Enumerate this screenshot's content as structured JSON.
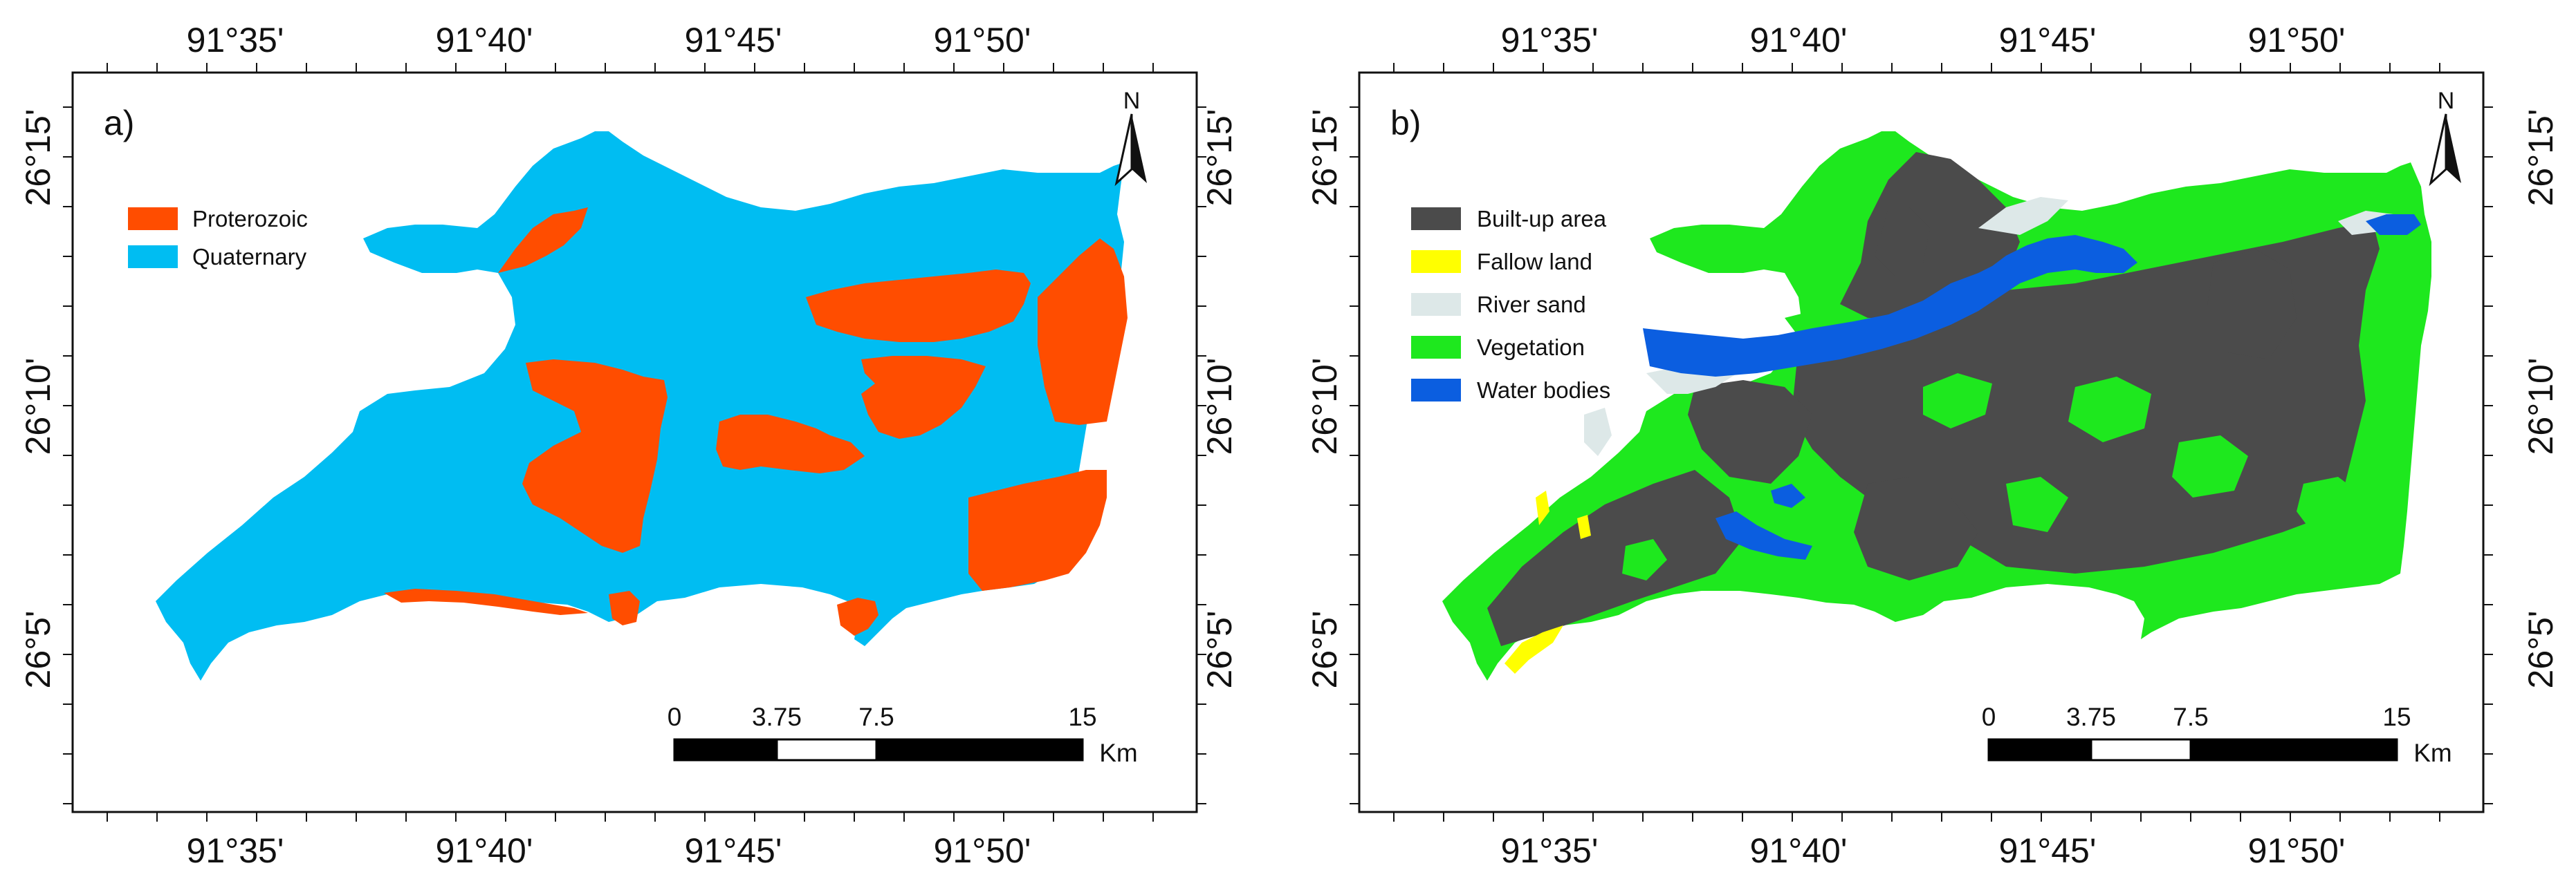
{
  "panels": [
    {
      "tag": "a)",
      "legend": [
        {
          "label": "Proterozoic",
          "color": "#ff4d00"
        },
        {
          "label": "Quaternary",
          "color": "#00bdf2"
        }
      ]
    },
    {
      "tag": "b)",
      "legend": [
        {
          "label": "Built-up area",
          "color": "#4b4b4b"
        },
        {
          "label": "Fallow land",
          "color": "#ffff00"
        },
        {
          "label": "River sand",
          "color": "#dde8e8"
        },
        {
          "label": "Vegetation",
          "color": "#1ee81e"
        },
        {
          "label": "Water bodies",
          "color": "#0b5ee0"
        }
      ]
    }
  ],
  "longitude_labels": [
    "91°35'",
    "91°40'",
    "91°45'",
    "91°50'"
  ],
  "latitude_labels": [
    "26°15'",
    "26°10'",
    "26°5'"
  ],
  "north_arrow": {
    "label": "N",
    "icon": "north-arrow-icon"
  },
  "scale_bar": {
    "ticks": [
      "0",
      "3.75",
      "7.5",
      "15"
    ],
    "unit": "Km"
  }
}
